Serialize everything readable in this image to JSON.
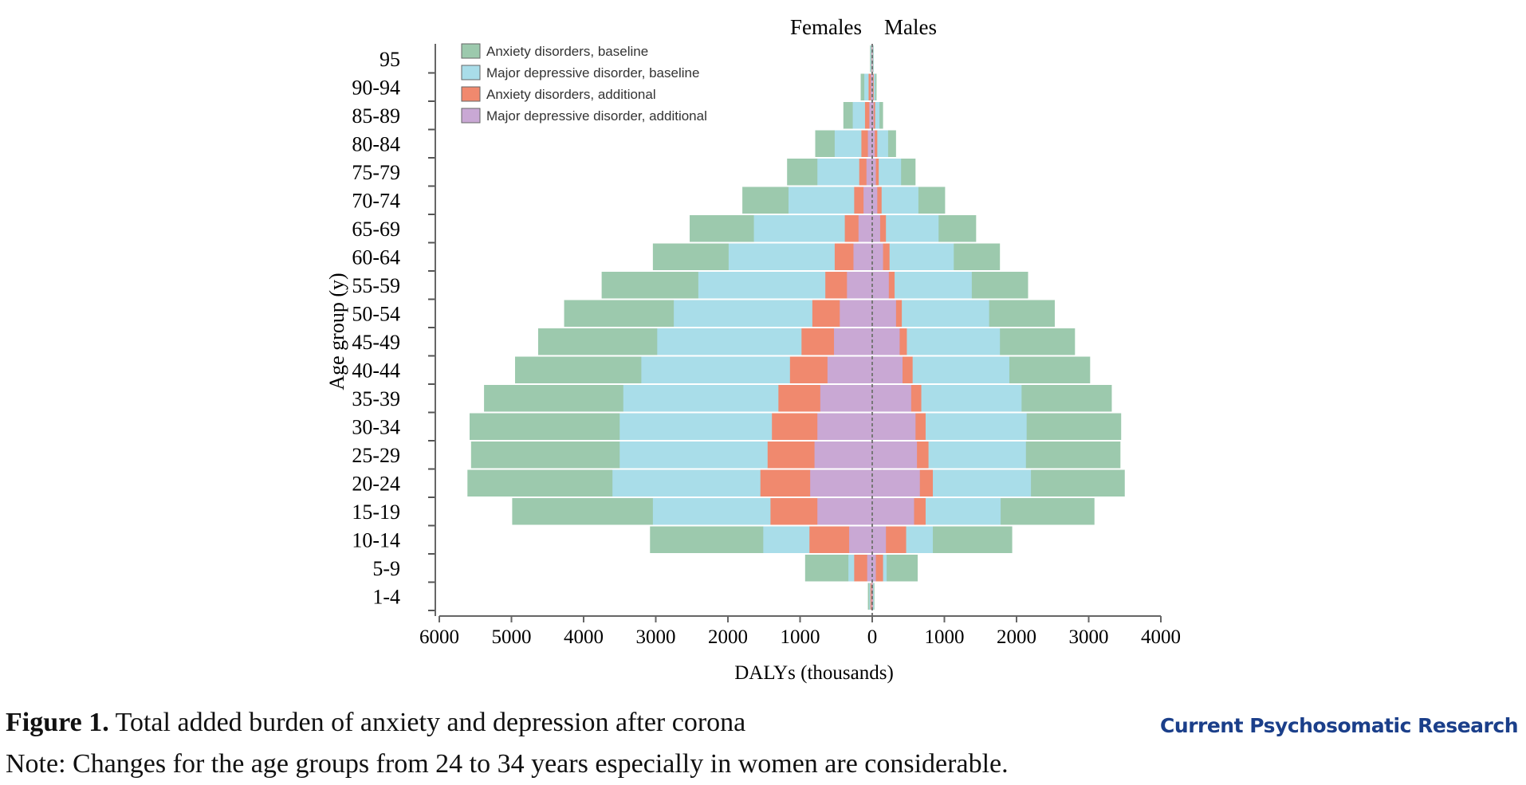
{
  "chart_data": {
    "type": "bar",
    "orientation": "horizontal-population-pyramid",
    "xlabel": "DALYs (thousands)",
    "ylabel": "Age group (y)",
    "side_labels": {
      "left": "Females",
      "right": "Males"
    },
    "x_ticks_left": [
      6000,
      5000,
      4000,
      3000,
      2000,
      1000,
      0
    ],
    "x_ticks_right": [
      1000,
      2000,
      3000,
      4000
    ],
    "xlim_females": [
      0,
      6000
    ],
    "xlim_males": [
      0,
      4000
    ],
    "stacking": "cumulative from center: MDD additional, anxiety additional, MDD baseline, anxiety baseline",
    "categories": [
      "95",
      "90-94",
      "85-89",
      "80-84",
      "75-79",
      "70-74",
      "65-69",
      "60-64",
      "55-59",
      "50-54",
      "45-49",
      "40-44",
      "35-39",
      "30-34",
      "25-29",
      "20-24",
      "15-19",
      "10-14",
      "5-9",
      "1-4"
    ],
    "series": [
      {
        "name": "Anxiety disorders, baseline",
        "color": "#9cc9ad",
        "females": [
          30,
          160,
          400,
          790,
          1180,
          1800,
          2530,
          3040,
          3750,
          4270,
          4630,
          4950,
          5380,
          5580,
          5560,
          5610,
          4990,
          3080,
          930,
          60
        ],
        "males": [
          20,
          60,
          150,
          330,
          600,
          1010,
          1440,
          1770,
          2160,
          2530,
          2810,
          3020,
          3320,
          3450,
          3440,
          3500,
          3080,
          1940,
          630,
          30
        ]
      },
      {
        "name": "Major depressive disorder, baseline",
        "color": "#a9dde9",
        "females": [
          20,
          110,
          270,
          520,
          760,
          1160,
          1640,
          1990,
          2410,
          2750,
          2980,
          3200,
          3450,
          3500,
          3500,
          3600,
          3040,
          1510,
          330,
          40
        ],
        "males": [
          15,
          40,
          100,
          220,
          400,
          640,
          920,
          1130,
          1380,
          1620,
          1770,
          1900,
          2070,
          2140,
          2130,
          2200,
          1780,
          840,
          200,
          20
        ]
      },
      {
        "name": "Anxiety disorders, additional",
        "color": "#f0896e",
        "females": [
          10,
          50,
          100,
          150,
          180,
          250,
          380,
          520,
          650,
          830,
          980,
          1140,
          1300,
          1390,
          1450,
          1550,
          1410,
          870,
          250,
          25
        ],
        "males": [
          5,
          20,
          40,
          70,
          90,
          130,
          190,
          240,
          310,
          410,
          480,
          560,
          680,
          740,
          780,
          840,
          740,
          470,
          150,
          10
        ]
      },
      {
        "name": "Major depressive disorder, additional",
        "color": "#c9a8d4",
        "females": [
          5,
          20,
          40,
          60,
          80,
          120,
          190,
          260,
          350,
          450,
          530,
          620,
          720,
          760,
          800,
          860,
          760,
          320,
          70,
          10
        ],
        "males": [
          3,
          10,
          20,
          35,
          50,
          70,
          110,
          150,
          230,
          330,
          380,
          420,
          540,
          600,
          620,
          660,
          580,
          190,
          50,
          5
        ]
      }
    ]
  },
  "caption": {
    "figure_label": "Figure 1.",
    "title": "Total added burden of anxiety and depression after corona",
    "note": "Note: Changes for the age groups from 24 to 34 years especially in women are considerable."
  },
  "brand": "Current Psychosomatic Research"
}
